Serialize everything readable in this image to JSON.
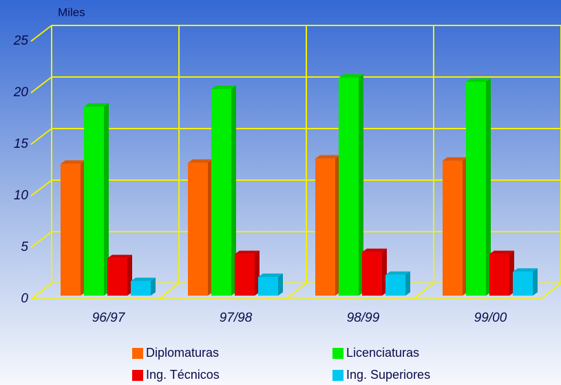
{
  "chart_data": {
    "type": "bar3d",
    "y_axis_label": "Miles",
    "categories": [
      "96/97",
      "97/98",
      "98/99",
      "99/00"
    ],
    "series": [
      {
        "name": "Diplomaturas",
        "color": "#ff6600",
        "values": [
          12.7,
          12.8,
          13.2,
          13.0
        ]
      },
      {
        "name": "Licenciaturas",
        "color": "#00ee00",
        "values": [
          18.2,
          19.9,
          21.0,
          20.6
        ]
      },
      {
        "name": "Ing. Técnicos",
        "color": "#ee0000",
        "values": [
          3.6,
          4.0,
          4.2,
          4.0
        ]
      },
      {
        "name": "Ing. Superiores",
        "color": "#00c8f0",
        "values": [
          1.4,
          1.8,
          2.0,
          2.3
        ]
      }
    ],
    "ylim": [
      0,
      25
    ],
    "yticks": [
      0,
      5,
      10,
      15,
      20,
      25
    ],
    "grid": true,
    "legend": "bottom"
  }
}
